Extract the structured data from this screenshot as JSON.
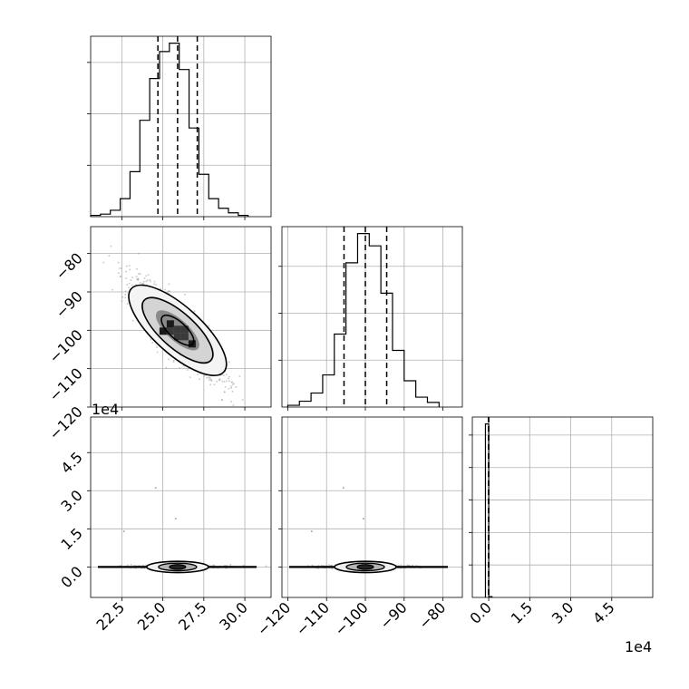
{
  "chart_data": [
    {
      "type": "histogram",
      "panel": "hist-param1",
      "bins": [
        20.6,
        21.2,
        21.8,
        22.4,
        23.0,
        23.6,
        24.2,
        24.8,
        25.4,
        26.0,
        26.6,
        27.2,
        27.8,
        28.4,
        29.0,
        29.6,
        30.2
      ],
      "counts": [
        2,
        4,
        10,
        28,
        70,
        150,
        215,
        257,
        270,
        229,
        138,
        66,
        28,
        13,
        6,
        2
      ],
      "quantiles": [
        24.7,
        25.9,
        27.1
      ],
      "xlim": [
        20.6,
        31.6
      ]
    },
    {
      "type": "histogram",
      "panel": "hist-param2",
      "bins": [
        -120,
        -117,
        -114,
        -111,
        -108,
        -105,
        -102,
        -99,
        -96,
        -93,
        -90,
        -87,
        -84,
        -81
      ],
      "counts": [
        3,
        10,
        24,
        55,
        125,
        247,
        297,
        276,
        195,
        97,
        45,
        17,
        8
      ],
      "quantiles": [
        -105.5,
        -100.0,
        -94.5
      ],
      "xlim": [
        -121.5,
        -75
      ]
    },
    {
      "type": "histogram",
      "panel": "hist-param3",
      "bins": [
        -0.12,
        0.0,
        0.12
      ],
      "counts": [
        1000,
        5
      ],
      "quantiles": [
        -0.01,
        -0.005,
        0.0
      ],
      "xlim": [
        -0.6,
        6.0
      ],
      "offset_text": "1e4"
    },
    {
      "type": "scatter",
      "panel": "p1-vs-p2",
      "x_mean": 25.9,
      "x_sd": 1.2,
      "y_mean": -100,
      "y_sd": 5.5,
      "correlation": -0.83,
      "xlim": [
        20.6,
        31.6
      ],
      "ylim": [
        -120,
        -73
      ]
    },
    {
      "type": "scatter",
      "panel": "p1-vs-p3",
      "x_mean": 25.9,
      "x_sd": 1.2,
      "y_mean": 0.0,
      "y_sd": 0.004,
      "xlim": [
        20.6,
        31.6
      ],
      "ylim": [
        -1.2,
        5.9
      ],
      "y_offset_text": "1e4"
    },
    {
      "type": "scatter",
      "panel": "p2-vs-p3",
      "x_mean": -100,
      "x_sd": 5.5,
      "y_mean": 0.0,
      "y_sd": 0.004,
      "xlim": [
        -121.5,
        -75
      ],
      "ylim": [
        -1.2,
        5.9
      ]
    }
  ],
  "axes": {
    "p1_ticks": [
      "22.5",
      "25.0",
      "27.5",
      "30.0"
    ],
    "p2_ticks": [
      "−120",
      "−110",
      "−100",
      "−90",
      "−80"
    ],
    "p3_ticks": [
      "0.0",
      "1.5",
      "3.0",
      "4.5"
    ],
    "p1_tick_values": [
      22.5,
      25.0,
      27.5,
      30.0
    ],
    "p2_tick_values": [
      -120,
      -110,
      -100,
      -90,
      -80
    ],
    "p3_tick_values": [
      0.0,
      1.5,
      3.0,
      4.5
    ],
    "p2_ytick_values": [
      -120,
      -110,
      -100,
      -90,
      -80
    ],
    "offset_left": "1e4",
    "offset_bottom": "1e4"
  }
}
